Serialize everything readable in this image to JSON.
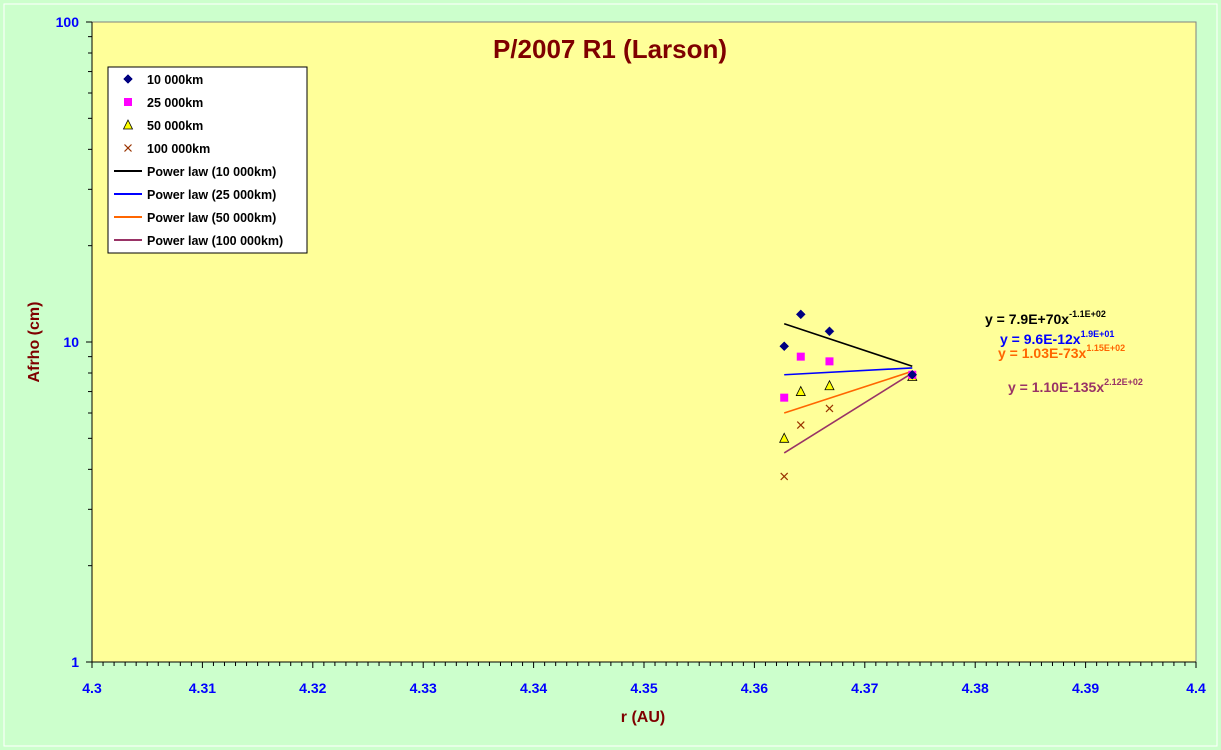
{
  "chart_data": {
    "type": "scatter",
    "title": "P/2007 R1 (Larson)",
    "xlabel": "r (AU)",
    "ylabel": "Afrho (cm)",
    "xlim": [
      4.3,
      4.4
    ],
    "ylim": [
      1,
      100
    ],
    "y_scale": "log",
    "x_ticks": [
      "4.3",
      "4.31",
      "4.32",
      "4.33",
      "4.34",
      "4.35",
      "4.36",
      "4.37",
      "4.38",
      "4.39",
      "4.4"
    ],
    "y_ticks": [
      "1",
      "10",
      "100"
    ],
    "legend_position": "top-left",
    "grid": false,
    "series": [
      {
        "name": "10 000km",
        "marker": "diamond",
        "color": "#000080",
        "x": [
          4.3627,
          4.3642,
          4.3668,
          4.3743
        ],
        "y": [
          9.7,
          12.2,
          10.8,
          7.9
        ]
      },
      {
        "name": "25 000km",
        "marker": "square",
        "color": "#ff00ff",
        "x": [
          4.3627,
          4.3642,
          4.3668,
          4.3743
        ],
        "y": [
          6.7,
          9.0,
          8.7,
          7.9
        ]
      },
      {
        "name": "50 000km",
        "marker": "triangle",
        "color": "#ffff00",
        "x": [
          4.3627,
          4.3642,
          4.3668,
          4.3743
        ],
        "y": [
          5.0,
          7.0,
          7.3,
          7.8
        ]
      },
      {
        "name": "100 000km",
        "marker": "x",
        "color": "#993300",
        "x": [
          4.3627,
          4.3642,
          4.3668,
          4.3743
        ],
        "y": [
          3.8,
          5.5,
          6.2,
          7.8
        ]
      }
    ],
    "trendlines": [
      {
        "name": "Power law (10 000km)",
        "color": "#000000",
        "x": [
          4.3627,
          4.3743
        ],
        "y": [
          11.4,
          8.4
        ],
        "equation": {
          "text": "y = 7.9E+70x",
          "sup": "-1.1E+02"
        }
      },
      {
        "name": "Power law (25 000km)",
        "color": "#0000ff",
        "x": [
          4.3627,
          4.3743
        ],
        "y": [
          7.9,
          8.3
        ],
        "equation": {
          "text": "y = 9.6E-12x",
          "sup": "1.9E+01"
        }
      },
      {
        "name": "Power law (50 000km)",
        "color": "#ff6600",
        "x": [
          4.3627,
          4.3743
        ],
        "y": [
          6.0,
          8.1
        ],
        "equation": {
          "text": "y = 1.03E-73x",
          "sup": "1.15E+02"
        }
      },
      {
        "name": "Power law (100 000km)",
        "color": "#993366",
        "x": [
          4.3627,
          4.3743
        ],
        "y": [
          4.5,
          8.0
        ],
        "equation": {
          "text": "y = 1.10E-135x",
          "sup": "2.12E+02"
        }
      }
    ]
  },
  "colors": {
    "page_background": "#ccffcc",
    "plot_background": "#ffff99",
    "title": "#7f0000",
    "tick_labels": "#0000ff"
  }
}
